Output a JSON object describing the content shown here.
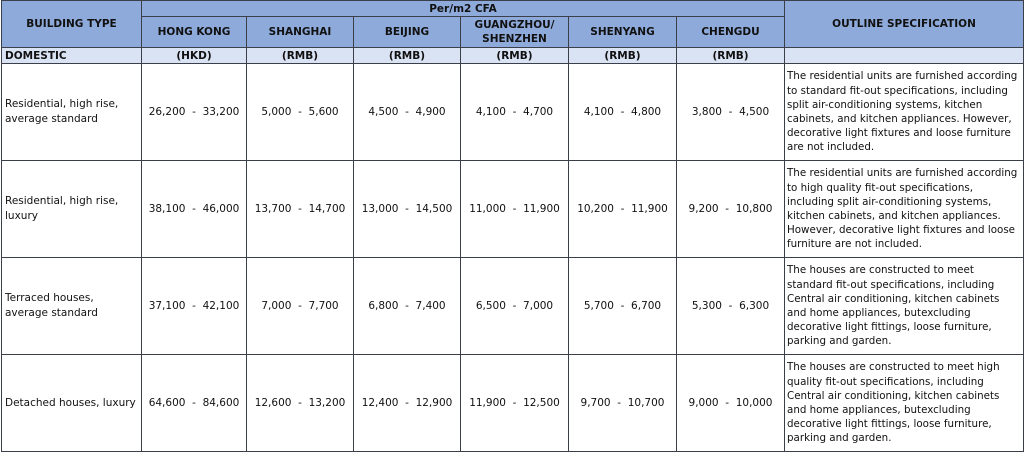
{
  "header": {
    "building_type": "BUILDING TYPE",
    "per_m2": "Per/m2 CFA",
    "outline_spec": "OUTLINE SPECIFICATION",
    "cities": [
      "HONG KONG",
      "SHANGHAI",
      "BEIJING",
      "GUANGZHOU/ SHENZHEN",
      "SHENYANG",
      "CHENGDU"
    ],
    "currencies": [
      "(HKD)",
      "(RMB)",
      "(RMB)",
      "(RMB)",
      "(RMB)",
      "(RMB)"
    ],
    "category": "DOMESTIC"
  },
  "colors": {
    "header_bg": "#8eaadb",
    "subheader_bg": "#dae3f3"
  },
  "rows": [
    {
      "type": "Residential, high rise, average standard",
      "values": [
        "26,200  -  33,200",
        "5,000  -  5,600",
        "4,500  -  4,900",
        "4,100  -  4,700",
        "4,100  -  4,800",
        "3,800  -  4,500"
      ],
      "spec": "The residential units are furnished according to standard fit-out specifications, including split air-conditioning systems, kitchen cabinets, and kitchen appliances. However, decorative light fixtures and loose furniture are not included."
    },
    {
      "type": "Residential, high rise, luxury",
      "values": [
        "38,100  -  46,000",
        "13,700  -  14,700",
        "13,000  -  14,500",
        "11,000  -  11,900",
        "10,200  -  11,900",
        "9,200  -  10,800"
      ],
      "spec": "The residential units are furnished according to high quality fit-out specifications, including split air-conditioning systems, kitchen cabinets, and kitchen appliances. However, decorative light fixtures and loose furniture are not included."
    },
    {
      "type": "Terraced houses, average standard",
      "values": [
        "37,100  -  42,100",
        "7,000  -  7,700",
        "6,800  -  7,400",
        "6,500  -  7,000",
        "5,700  -  6,700",
        "5,300  -  6,300"
      ],
      "spec": "The houses are constructed to meet standard fit-out specifications, including Central air conditioning, kitchen cabinets and home appliances, butexcluding decorative light fittings, loose furniture, parking and garden."
    },
    {
      "type": "Detached houses, luxury",
      "values": [
        "64,600  -  84,600",
        "12,600  -  13,200",
        "12,400  -  12,900",
        "11,900  -  12,500",
        "9,700  -  10,700",
        "9,000  -  10,000"
      ],
      "spec": "The houses are constructed to meet high quality fit-out specifications, including Central air conditioning, kitchen cabinets and home appliances, butexcluding decorative light fittings, loose furniture, parking and garden."
    }
  ]
}
